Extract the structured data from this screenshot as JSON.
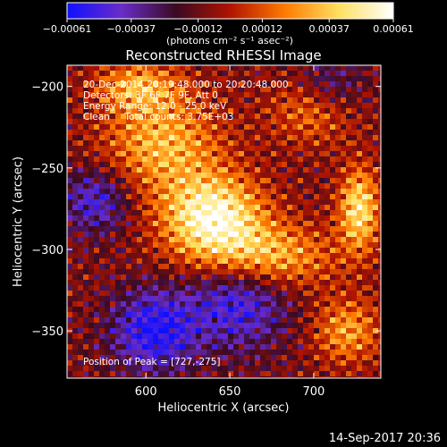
{
  "chart_data": {
    "type": "heatmap",
    "title": "Reconstructed RHESSI Image",
    "xlabel": "Heliocentric X (arcsec)",
    "ylabel": "Heliocentric Y (arcsec)",
    "xlim": [
      553,
      740
    ],
    "ylim": [
      -379,
      -187
    ],
    "x_ticks": [
      600,
      650,
      700
    ],
    "x_tick_labels": [
      "600",
      "650",
      "700"
    ],
    "y_ticks": [
      -200,
      -250,
      -300,
      -350
    ],
    "y_tick_labels": [
      "−200",
      "−250",
      "−300",
      "−350"
    ],
    "colorbar": {
      "range": [
        -0.00061,
        0.00061
      ],
      "ticks": [
        -0.00061,
        -0.00037,
        -0.00012,
        0.00012,
        0.00037,
        0.00061
      ],
      "tick_labels": [
        "−0.00061",
        "−0.00037",
        "−0.00012",
        "0.00012",
        "0.00037",
        "0.00061"
      ],
      "units_label": "(photons cm⁻² s⁻¹ asec⁻²)",
      "colors": [
        "#1010ff",
        "#6a2cc8",
        "#3a0a22",
        "#b01400",
        "#ff7a00",
        "#ffe060",
        "#ffffff"
      ]
    },
    "annotations": [
      "20-Dec-2014 20:19:48.000 to 20:20:48.000",
      "Detectors: 3F 6F 7F 9F, Att 0",
      "Energy Range: 12.0 - 25.0 keV",
      "Clean     Total counts: 3.75E+03"
    ],
    "peak_label": "Position of Peak = [727,-275]",
    "peak": [
      727,
      -275
    ],
    "grid": false
  },
  "footer": {
    "timestamp": "14-Sep-2017 20:36"
  }
}
